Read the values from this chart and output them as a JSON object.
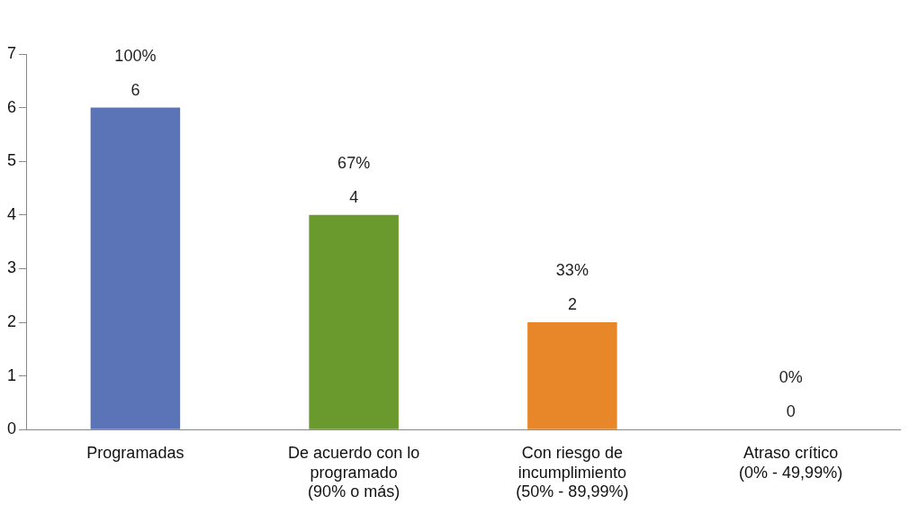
{
  "chart_data": {
    "type": "bar",
    "categories": [
      "Programadas",
      "De acuerdo con lo\nprogramado\n(90% o más)",
      "Con riesgo de\nincumplimiento\n(50% - 89,99%)",
      "Atraso crítico\n(0% - 49,99%)"
    ],
    "values": [
      6,
      4,
      2,
      0
    ],
    "colors": [
      "#5b74b8",
      "#6a9a2e",
      "#e8872a",
      "#b0b0b0"
    ],
    "value_labels": [
      "100%\n6",
      "67%\n4",
      "33%\n2",
      "0%\n0"
    ],
    "ylim": [
      0,
      7
    ],
    "yticks": [
      0,
      1,
      2,
      3,
      4,
      5,
      6,
      7
    ],
    "grid": false,
    "legend": false
  }
}
